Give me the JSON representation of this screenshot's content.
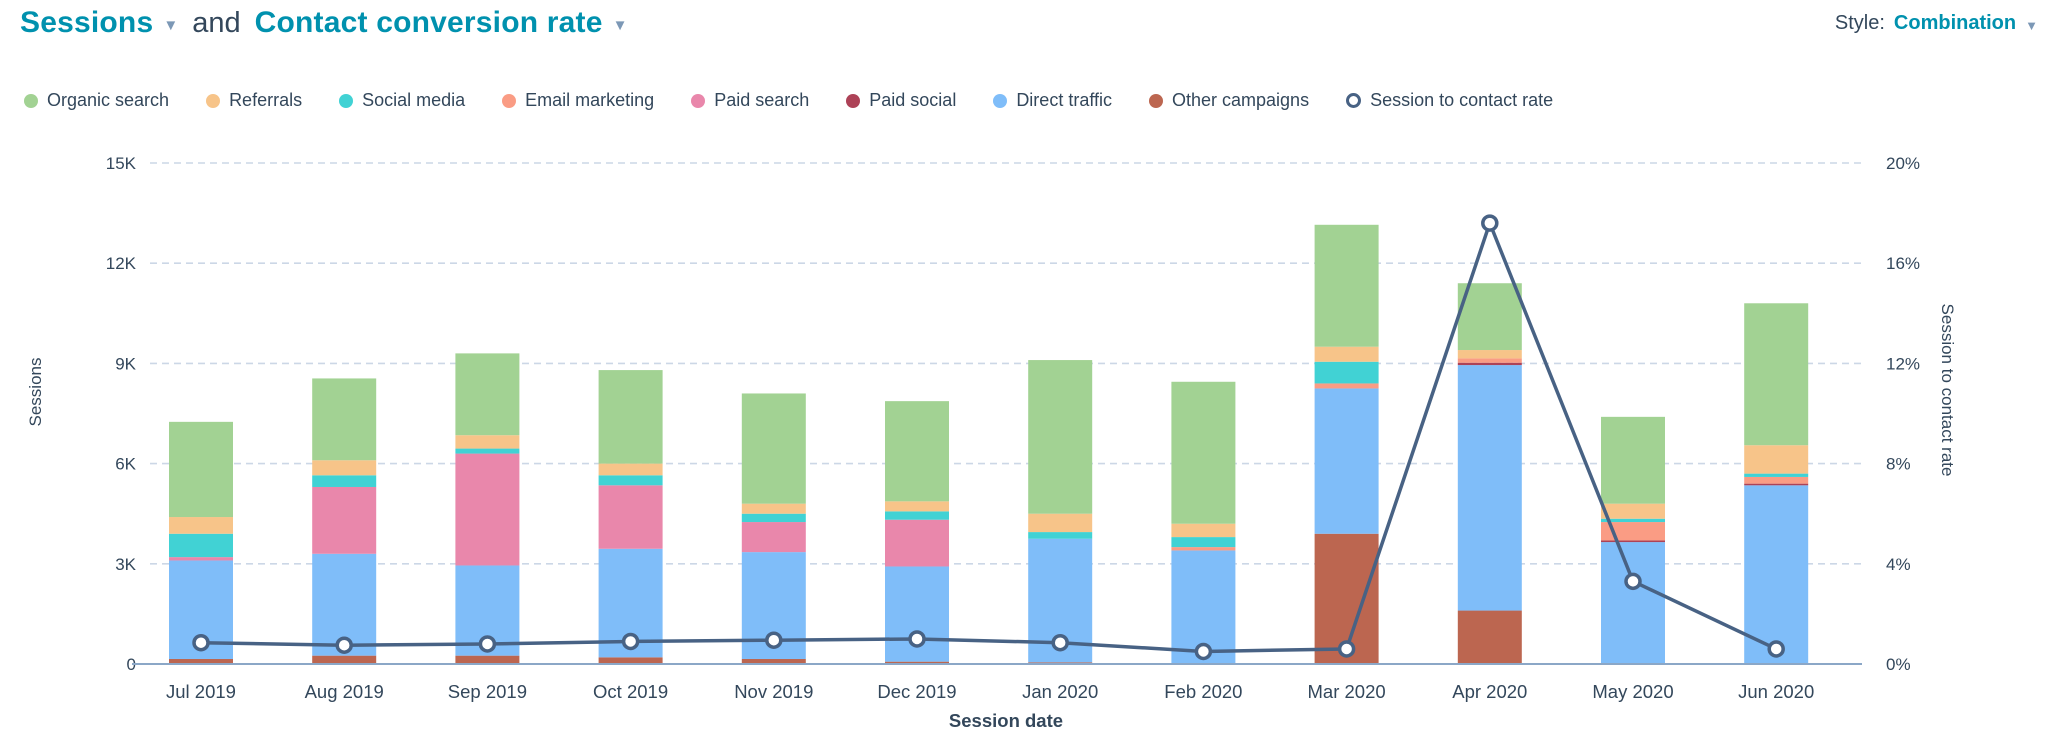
{
  "header": {
    "metric1": "Sessions",
    "joiner": "and",
    "metric2": "Contact conversion rate",
    "style_label": "Style:",
    "style_value": "Combination"
  },
  "colors": {
    "accent_teal": "#0091ae",
    "text_navy": "#33475b",
    "grid": "#ccd7e6",
    "axis_line": "#8ba7c7",
    "line_series": "#486284"
  },
  "legend": [
    {
      "label": "Organic search",
      "color": "#a2d293",
      "swatch": "dot"
    },
    {
      "label": "Referrals",
      "color": "#f7c489",
      "swatch": "dot"
    },
    {
      "label": "Social media",
      "color": "#41d2d4",
      "swatch": "dot"
    },
    {
      "label": "Email marketing",
      "color": "#fa9c84",
      "swatch": "dot"
    },
    {
      "label": "Paid search",
      "color": "#e987ab",
      "swatch": "dot"
    },
    {
      "label": "Paid social",
      "color": "#ad4257",
      "swatch": "dot"
    },
    {
      "label": "Direct traffic",
      "color": "#7fbdf9",
      "swatch": "dot"
    },
    {
      "label": "Other campaigns",
      "color": "#bc6650",
      "swatch": "dot"
    },
    {
      "label": "Session to contact rate",
      "color": "#486284",
      "swatch": "ring"
    }
  ],
  "chart_data": {
    "type": "combo-stacked-bar-line",
    "categories": [
      "Jul 2019",
      "Aug 2019",
      "Sep 2019",
      "Oct 2019",
      "Nov 2019",
      "Dec 2019",
      "Jan 2020",
      "Feb 2020",
      "Mar 2020",
      "Apr 2020",
      "May 2020",
      "Jun 2020"
    ],
    "series": [
      {
        "name": "Other campaigns",
        "color": "#bc6650",
        "values": [
          150,
          250,
          250,
          200,
          150,
          70,
          50,
          0,
          3900,
          1600,
          0,
          0
        ]
      },
      {
        "name": "Direct traffic",
        "color": "#7fbdf9",
        "values": [
          2950,
          3050,
          2700,
          3250,
          3200,
          2850,
          3700,
          3400,
          4350,
          7350,
          3650,
          5350
        ]
      },
      {
        "name": "Paid social",
        "color": "#ad4257",
        "values": [
          0,
          0,
          0,
          0,
          0,
          0,
          0,
          0,
          0,
          70,
          50,
          50
        ]
      },
      {
        "name": "Paid search",
        "color": "#e987ab",
        "values": [
          100,
          2000,
          3350,
          1900,
          900,
          1400,
          0,
          0,
          0,
          0,
          0,
          0
        ]
      },
      {
        "name": "Email marketing",
        "color": "#fa9c84",
        "values": [
          0,
          0,
          0,
          0,
          0,
          0,
          0,
          100,
          150,
          130,
          550,
          200
        ]
      },
      {
        "name": "Social media",
        "color": "#41d2d4",
        "values": [
          700,
          350,
          150,
          300,
          250,
          250,
          200,
          300,
          650,
          0,
          100,
          100
        ]
      },
      {
        "name": "Referrals",
        "color": "#f7c489",
        "values": [
          500,
          450,
          400,
          350,
          300,
          300,
          550,
          400,
          450,
          250,
          450,
          850
        ]
      },
      {
        "name": "Organic search",
        "color": "#a2d293",
        "values": [
          2850,
          2450,
          2450,
          2800,
          3300,
          3000,
          4600,
          4250,
          3650,
          2000,
          2600,
          4250
        ]
      }
    ],
    "line_series": {
      "name": "Session to contact rate",
      "color": "#486284",
      "values_pct": [
        0.85,
        0.75,
        0.8,
        0.9,
        0.95,
        1.0,
        0.85,
        0.5,
        0.6,
        17.6,
        3.3,
        0.6
      ]
    },
    "left_axis": {
      "title": "Sessions",
      "max": 15000,
      "ticks": [
        {
          "label": "0",
          "value": 0
        },
        {
          "label": "3K",
          "value": 3000
        },
        {
          "label": "6K",
          "value": 6000
        },
        {
          "label": "9K",
          "value": 9000
        },
        {
          "label": "12K",
          "value": 12000
        },
        {
          "label": "15K",
          "value": 15000
        }
      ]
    },
    "right_axis": {
      "title": "Session to contact rate",
      "max": 20,
      "ticks": [
        {
          "label": "0%",
          "value": 0
        },
        {
          "label": "4%",
          "value": 4
        },
        {
          "label": "8%",
          "value": 8
        },
        {
          "label": "12%",
          "value": 12
        },
        {
          "label": "16%",
          "value": 16
        },
        {
          "label": "20%",
          "value": 20
        }
      ]
    },
    "xlabel": "Session date",
    "grid": "horizontal-dashed",
    "legend_position": "top"
  }
}
